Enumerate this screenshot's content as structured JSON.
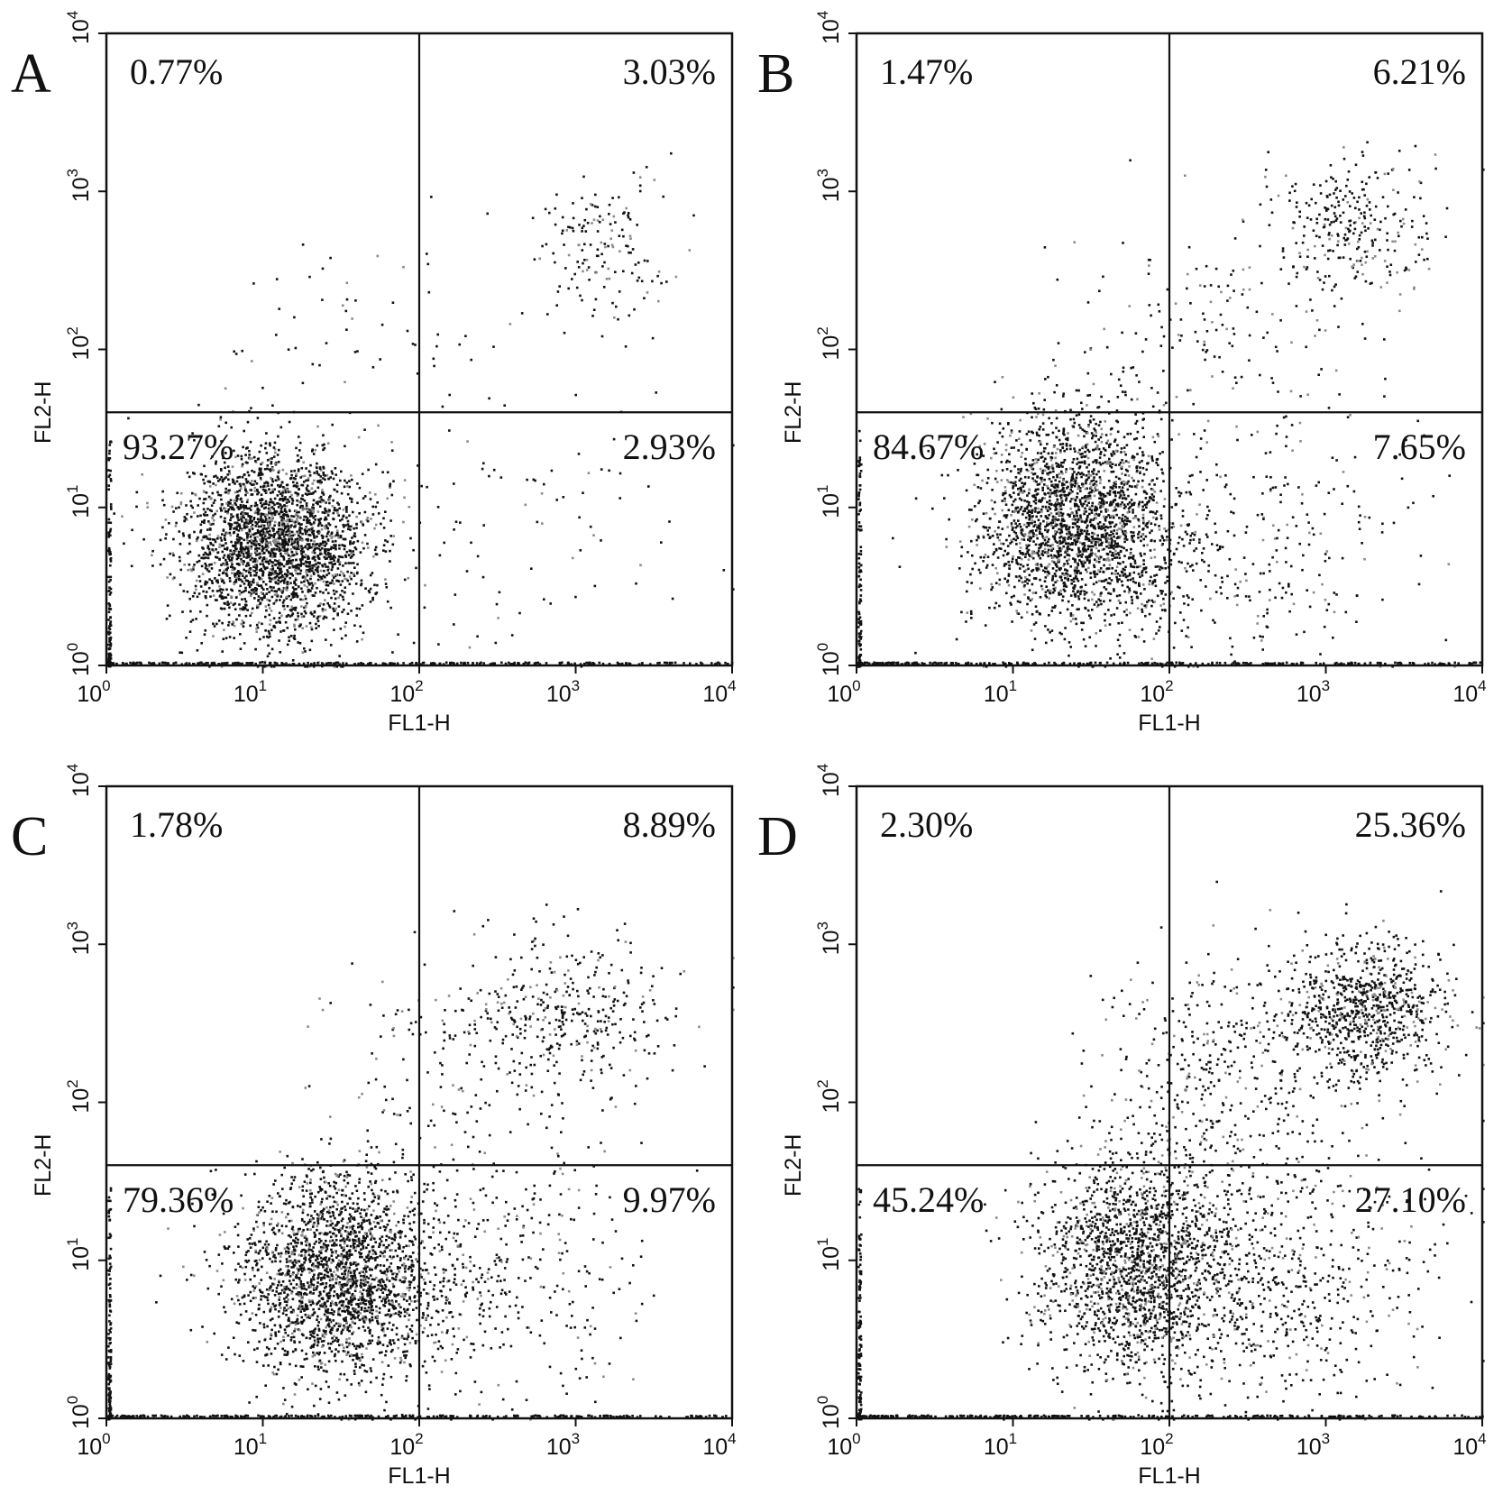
{
  "chart_data": [
    {
      "type": "scatter",
      "panel_label": "A",
      "xlabel": "FL1-H",
      "ylabel": "FL2-H",
      "xscale": "log",
      "yscale": "log",
      "xlim": [
        1,
        10000
      ],
      "ylim": [
        1,
        10000
      ],
      "x_ticks": [
        {
          "base": "10",
          "exp": "0"
        },
        {
          "base": "10",
          "exp": "1"
        },
        {
          "base": "10",
          "exp": "2"
        },
        {
          "base": "10",
          "exp": "3"
        },
        {
          "base": "10",
          "exp": "4"
        }
      ],
      "y_ticks": [
        {
          "base": "10",
          "exp": "0"
        },
        {
          "base": "10",
          "exp": "1"
        },
        {
          "base": "10",
          "exp": "2"
        },
        {
          "base": "10",
          "exp": "3"
        },
        {
          "base": "10",
          "exp": "4"
        }
      ],
      "gate": {
        "x": 100,
        "y": 40
      },
      "quadrants": {
        "upper_left": "0.77%",
        "upper_right": "3.03%",
        "lower_left": "93.27%",
        "lower_right": "2.93%"
      },
      "populations": [
        {
          "x": 12,
          "y": 6,
          "spread_x": 0.3,
          "spread_y": 0.3,
          "count": 2600
        },
        {
          "x": 1500,
          "y": 400,
          "spread_x": 0.22,
          "spread_y": 0.25,
          "count": 160
        },
        {
          "x": 40,
          "y": 150,
          "spread_x": 0.4,
          "spread_y": 0.35,
          "count": 55
        },
        {
          "x": 500,
          "y": 8,
          "spread_x": 0.55,
          "spread_y": 0.45,
          "count": 90
        }
      ]
    },
    {
      "type": "scatter",
      "panel_label": "B",
      "xlabel": "FL1-H",
      "ylabel": "FL2-H",
      "xscale": "log",
      "yscale": "log",
      "xlim": [
        1,
        10000
      ],
      "ylim": [
        1,
        10000
      ],
      "x_ticks": [
        {
          "base": "10",
          "exp": "0"
        },
        {
          "base": "10",
          "exp": "1"
        },
        {
          "base": "10",
          "exp": "2"
        },
        {
          "base": "10",
          "exp": "3"
        },
        {
          "base": "10",
          "exp": "4"
        }
      ],
      "y_ticks": [
        {
          "base": "10",
          "exp": "0"
        },
        {
          "base": "10",
          "exp": "1"
        },
        {
          "base": "10",
          "exp": "2"
        },
        {
          "base": "10",
          "exp": "3"
        },
        {
          "base": "10",
          "exp": "4"
        }
      ],
      "gate": {
        "x": 100,
        "y": 40
      },
      "quadrants": {
        "upper_left": "1.47%",
        "upper_right": "6.21%",
        "lower_left": "84.67%",
        "lower_right": "7.65%"
      },
      "populations": [
        {
          "x": 25,
          "y": 8,
          "spread_x": 0.32,
          "spread_y": 0.33,
          "count": 2400
        },
        {
          "x": 1500,
          "y": 600,
          "spread_x": 0.25,
          "spread_y": 0.22,
          "count": 280
        },
        {
          "x": 200,
          "y": 120,
          "spread_x": 0.5,
          "spread_y": 0.4,
          "count": 180
        },
        {
          "x": 400,
          "y": 6,
          "spread_x": 0.5,
          "spread_y": 0.4,
          "count": 250
        }
      ]
    },
    {
      "type": "scatter",
      "panel_label": "C",
      "xlabel": "FL1-H",
      "ylabel": "FL2-H",
      "xscale": "log",
      "yscale": "log",
      "xlim": [
        1,
        10000
      ],
      "ylim": [
        1,
        10000
      ],
      "x_ticks": [
        {
          "base": "10",
          "exp": "0"
        },
        {
          "base": "10",
          "exp": "1"
        },
        {
          "base": "10",
          "exp": "2"
        },
        {
          "base": "10",
          "exp": "3"
        },
        {
          "base": "10",
          "exp": "4"
        }
      ],
      "y_ticks": [
        {
          "base": "10",
          "exp": "0"
        },
        {
          "base": "10",
          "exp": "1"
        },
        {
          "base": "10",
          "exp": "2"
        },
        {
          "base": "10",
          "exp": "3"
        },
        {
          "base": "10",
          "exp": "4"
        }
      ],
      "gate": {
        "x": 100,
        "y": 40
      },
      "quadrants": {
        "upper_left": "1.78%",
        "upper_right": "8.89%",
        "lower_left": "79.36%",
        "lower_right": "9.97%"
      },
      "populations": [
        {
          "x": 30,
          "y": 8,
          "spread_x": 0.33,
          "spread_y": 0.32,
          "count": 2300
        },
        {
          "x": 1000,
          "y": 400,
          "spread_x": 0.35,
          "spread_y": 0.25,
          "count": 330
        },
        {
          "x": 200,
          "y": 150,
          "spread_x": 0.45,
          "spread_y": 0.4,
          "count": 200
        },
        {
          "x": 300,
          "y": 8,
          "spread_x": 0.5,
          "spread_y": 0.4,
          "count": 320
        }
      ]
    },
    {
      "type": "scatter",
      "panel_label": "D",
      "xlabel": "FL1-H",
      "ylabel": "FL2-H",
      "xscale": "log",
      "yscale": "log",
      "xlim": [
        1,
        10000
      ],
      "ylim": [
        1,
        10000
      ],
      "x_ticks": [
        {
          "base": "10",
          "exp": "0"
        },
        {
          "base": "10",
          "exp": "1"
        },
        {
          "base": "10",
          "exp": "2"
        },
        {
          "base": "10",
          "exp": "3"
        },
        {
          "base": "10",
          "exp": "4"
        }
      ],
      "y_ticks": [
        {
          "base": "10",
          "exp": "0"
        },
        {
          "base": "10",
          "exp": "1"
        },
        {
          "base": "10",
          "exp": "2"
        },
        {
          "base": "10",
          "exp": "3"
        },
        {
          "base": "10",
          "exp": "4"
        }
      ],
      "gate": {
        "x": 100,
        "y": 40
      },
      "quadrants": {
        "upper_left": "2.30%",
        "upper_right": "25.36%",
        "lower_left": "45.24%",
        "lower_right": "27.10%"
      },
      "populations": [
        {
          "x": 60,
          "y": 10,
          "spread_x": 0.32,
          "spread_y": 0.35,
          "count": 1800
        },
        {
          "x": 1800,
          "y": 400,
          "spread_x": 0.25,
          "spread_y": 0.22,
          "count": 800
        },
        {
          "x": 250,
          "y": 200,
          "spread_x": 0.45,
          "spread_y": 0.35,
          "count": 400
        },
        {
          "x": 400,
          "y": 8,
          "spread_x": 0.5,
          "spread_y": 0.4,
          "count": 700
        }
      ]
    }
  ]
}
